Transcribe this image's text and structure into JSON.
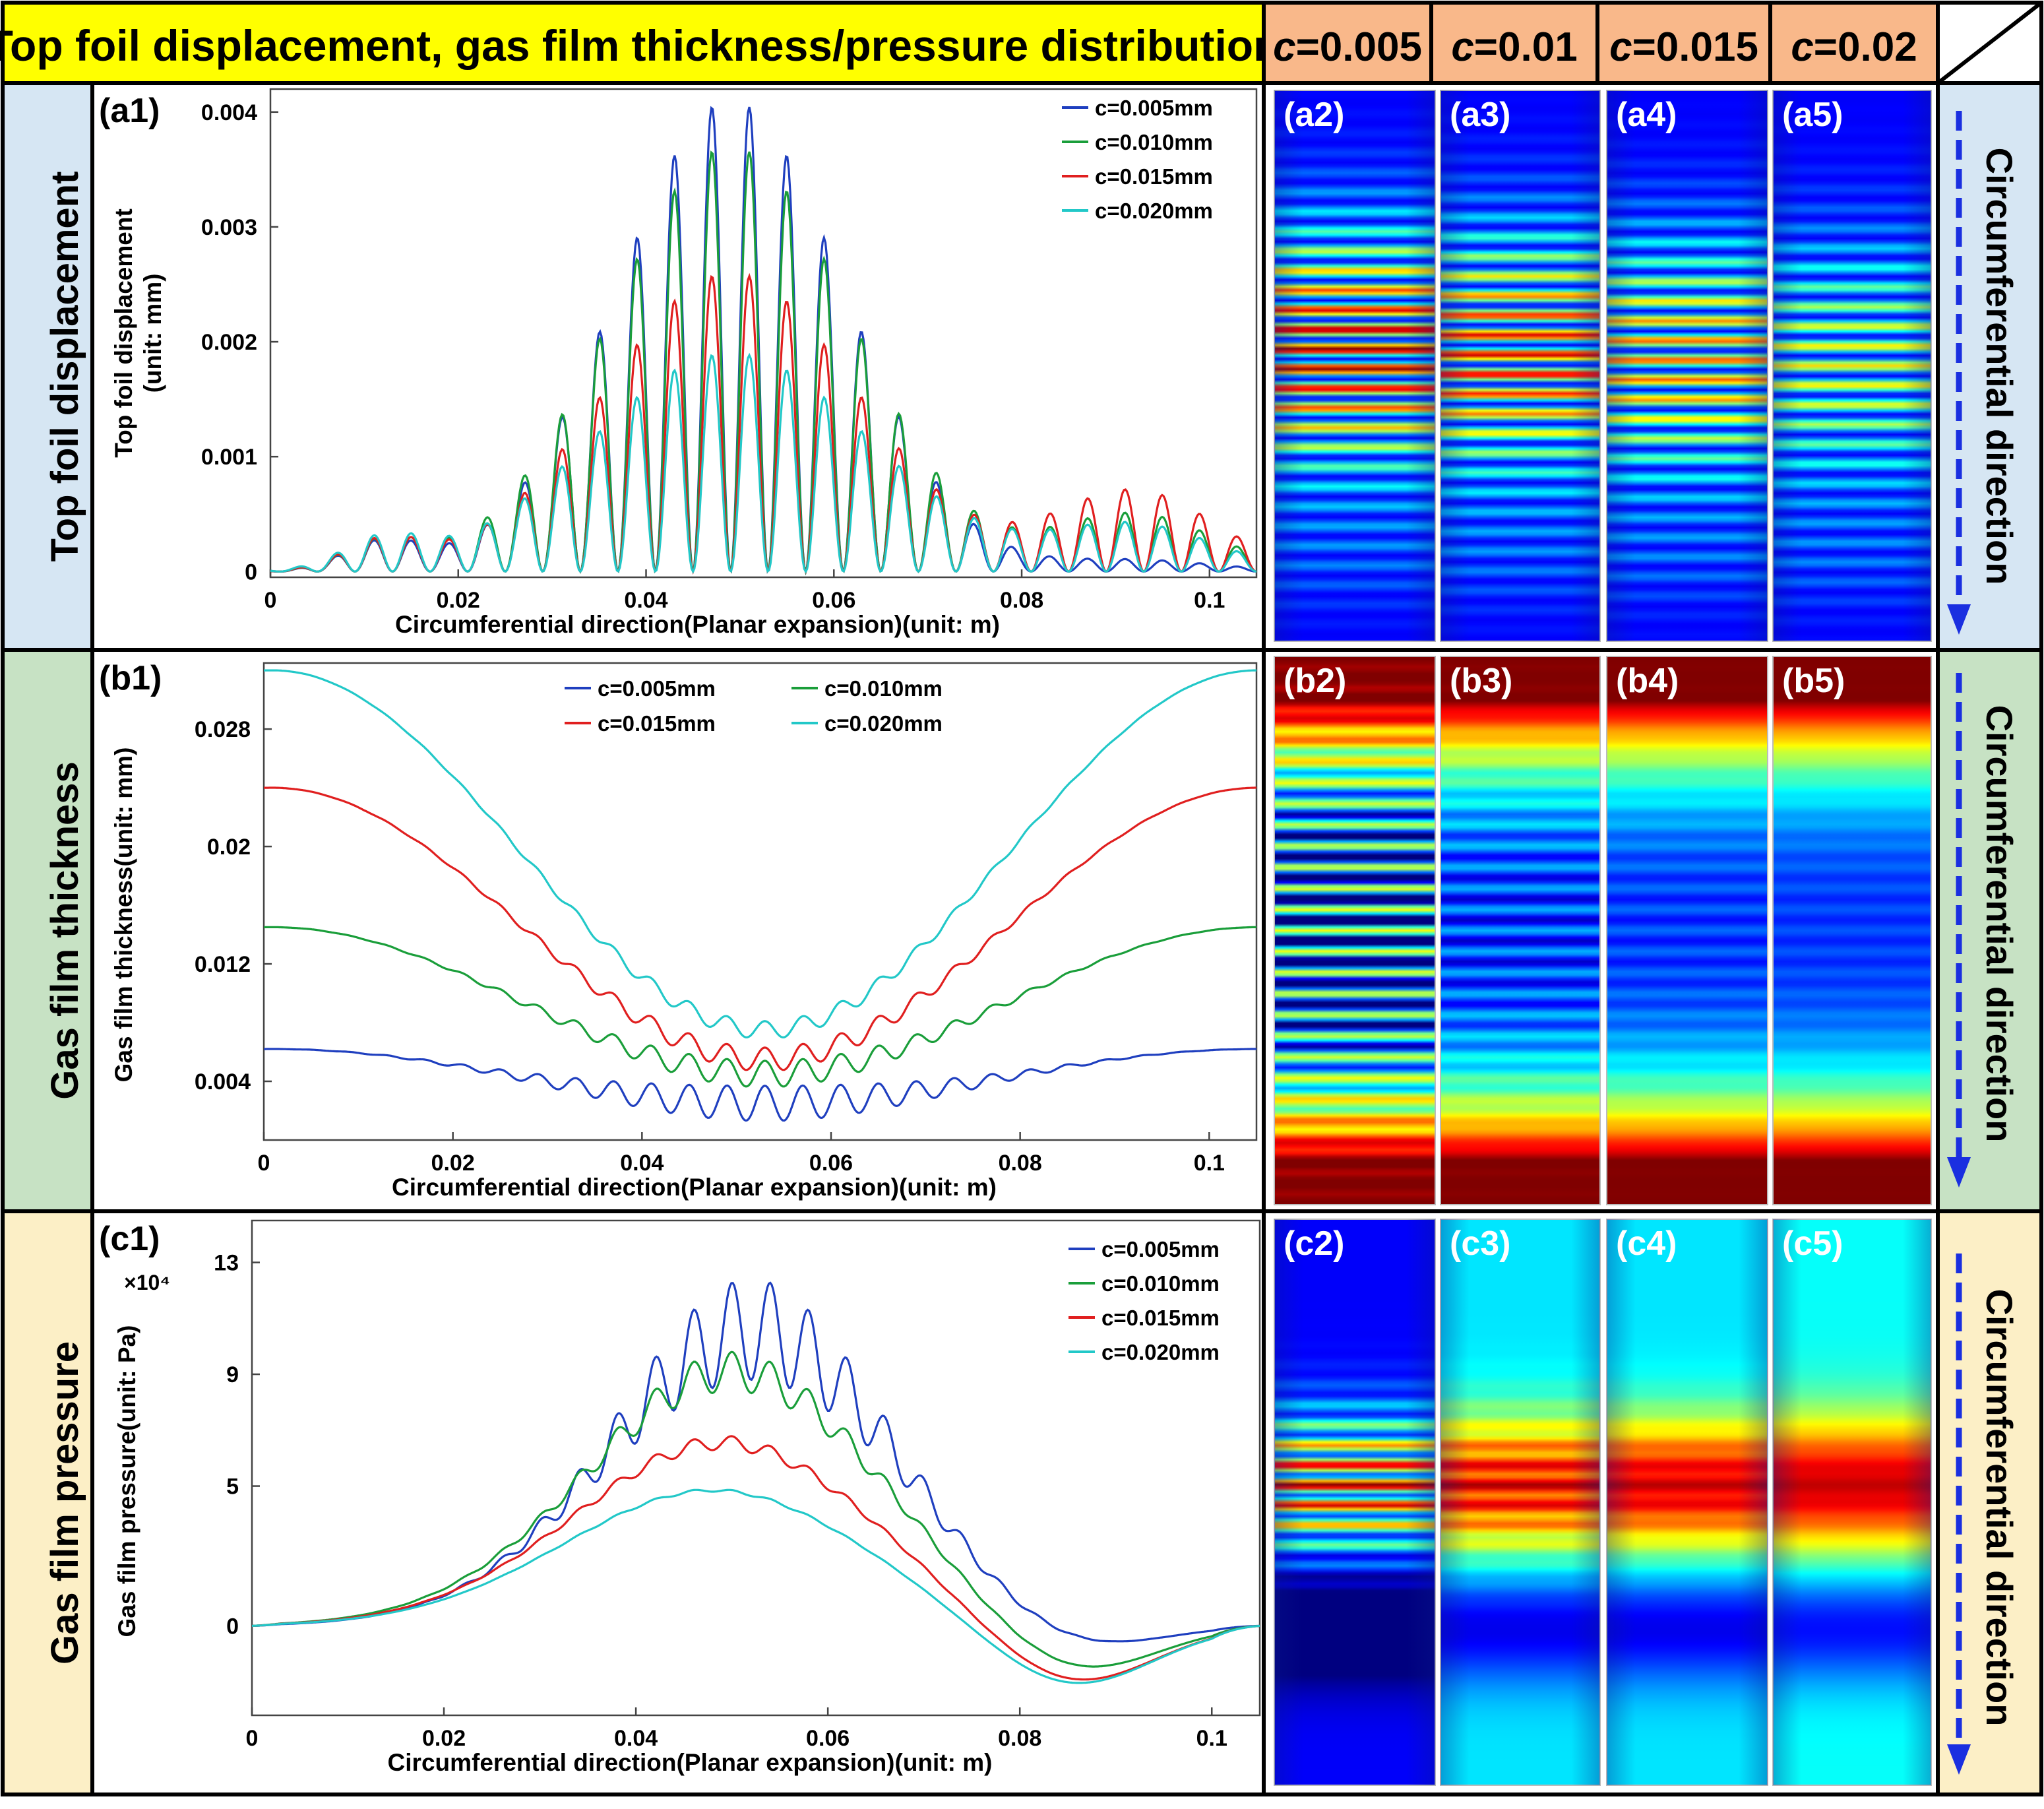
{
  "header": {
    "title": "Top foil displacement, gas film thickness/pressure distribution",
    "c_labels": [
      "c=0.005",
      "c=0.01",
      "c=0.015",
      "c=0.02"
    ]
  },
  "rows": [
    {
      "label": "Top foil displacement",
      "panel_labels": [
        "(a2)",
        "(a3)",
        "(a4)",
        "(a5)"
      ]
    },
    {
      "label": "Gas film thickness",
      "panel_labels": [
        "(b2)",
        "(b3)",
        "(b4)",
        "(b5)"
      ]
    },
    {
      "label": "Gas film pressure",
      "panel_labels": [
        "(c2)",
        "(c3)",
        "(c4)",
        "(c5)"
      ]
    }
  ],
  "direction_label": "Circumferential direction",
  "colors": {
    "header_yellow": "#ffff00",
    "header_orange": "#f9b88a",
    "row_a_bg": "#d6e6f3",
    "row_b_bg": "#c7e2c4",
    "row_c_bg": "#fcefc6",
    "series": [
      "#1f3fbf",
      "#1a9e3a",
      "#e01f1f",
      "#22c8c8"
    ],
    "arrow": "#1a2fe0"
  },
  "chart_data": [
    {
      "id": "a1",
      "type": "line",
      "panel_label": "(a1)",
      "title": "",
      "xlabel": "Circumferential direction(Planar expansion)(unit: m)",
      "ylabel_line1": "Top foil displacement",
      "ylabel_line2": "(unit: mm)",
      "xlim": [
        0,
        0.105
      ],
      "ylim": [
        -5e-05,
        0.0042
      ],
      "xticks": [
        0,
        0.02,
        0.04,
        0.06,
        0.08,
        0.1
      ],
      "xtick_labels": [
        "0",
        "0.02",
        "0.04",
        "0.06",
        "0.08",
        "0.1"
      ],
      "yticks": [
        0,
        0.001,
        0.002,
        0.003,
        0.004
      ],
      "ytick_labels": [
        "0",
        "0.001",
        "0.002",
        "0.003",
        "0.004"
      ],
      "legend_position": "top-right",
      "legend": [
        "c=0.005mm",
        "c=0.010mm",
        "c=0.015mm",
        "c=0.020mm"
      ],
      "model": {
        "kind": "oscillating_bump",
        "period": 0.004,
        "center": 0.049
      },
      "series": [
        {
          "name": "c=0.005mm",
          "peak": 0.0041,
          "width": 0.017,
          "tail": 0.0001,
          "floor": 0.0
        },
        {
          "name": "c=0.010mm",
          "peak": 0.0037,
          "width": 0.018,
          "tail": 0.0005,
          "floor": 0.0
        },
        {
          "name": "c=0.015mm",
          "peak": 0.0026,
          "width": 0.019,
          "tail": 0.0007,
          "floor": 0.0
        },
        {
          "name": "c=0.020mm",
          "peak": 0.0019,
          "width": 0.021,
          "tail": 0.0004,
          "floor": 0.0
        }
      ]
    },
    {
      "id": "b1",
      "type": "line",
      "panel_label": "(b1)",
      "title": "",
      "xlabel": "Circumferential direction(Planar expansion)(unit: m)",
      "ylabel_line1": "Gas film thickness(unit: mm)",
      "ylabel_line2": "",
      "xlim": [
        0,
        0.105
      ],
      "ylim": [
        0.0,
        0.0325
      ],
      "xticks": [
        0,
        0.02,
        0.04,
        0.06,
        0.08,
        0.1
      ],
      "xtick_labels": [
        "0",
        "0.02",
        "0.04",
        "0.06",
        "0.08",
        "0.1"
      ],
      "yticks": [
        0.004,
        0.012,
        0.02,
        0.028
      ],
      "ytick_labels": [
        "0.004",
        "0.012",
        "0.02",
        "0.028"
      ],
      "legend_position": "top-center",
      "legend": [
        "c=0.005mm",
        "c=0.010mm",
        "c=0.015mm",
        "c=0.020mm"
      ],
      "model": {
        "kind": "valley",
        "center": 0.053
      },
      "series": [
        {
          "name": "c=0.005mm",
          "edge": 0.0062,
          "min": 0.0025,
          "ripple": 0.0012
        },
        {
          "name": "c=0.010mm",
          "edge": 0.0145,
          "min": 0.0045,
          "ripple": 0.0009
        },
        {
          "name": "c=0.015mm",
          "edge": 0.024,
          "min": 0.0055,
          "ripple": 0.0008
        },
        {
          "name": "c=0.020mm",
          "edge": 0.032,
          "min": 0.0075,
          "ripple": 0.0006
        }
      ]
    },
    {
      "id": "c1",
      "type": "line",
      "panel_label": "(c1)",
      "title": "",
      "xlabel": "Circumferential direction(Planar expansion)(unit: m)",
      "ylabel_line1": "Gas film pressure(unit: Pa)",
      "ylabel_line2": "",
      "y_multiplier": "×10⁴",
      "xlim": [
        0,
        0.105
      ],
      "ylim": [
        -3.2,
        14.5
      ],
      "xticks": [
        0,
        0.02,
        0.04,
        0.06,
        0.08,
        0.1
      ],
      "xtick_labels": [
        "0",
        "0.02",
        "0.04",
        "0.06",
        "0.08",
        "0.1"
      ],
      "yticks": [
        0,
        5,
        9,
        13
      ],
      "ytick_labels": [
        "0",
        "5",
        "9",
        "13"
      ],
      "legend_position": "top-right",
      "legend": [
        "c=0.005mm",
        "c=0.010mm",
        "c=0.015mm",
        "c=0.020mm"
      ],
      "model": {
        "kind": "pressure",
        "period": 0.004
      },
      "series": [
        {
          "name": "c=0.005mm",
          "peak": 14.0,
          "center": 0.052,
          "base_peak": 8.8,
          "ripple": 3.6,
          "neg": -1.2
        },
        {
          "name": "c=0.010mm",
          "peak": 10.0,
          "center": 0.05,
          "base_peak": 8.4,
          "ripple": 1.4,
          "neg": -2.0
        },
        {
          "name": "c=0.015mm",
          "peak": 6.9,
          "center": 0.049,
          "base_peak": 6.3,
          "ripple": 0.5,
          "neg": -2.3
        },
        {
          "name": "c=0.020mm",
          "peak": 4.8,
          "center": 0.048,
          "base_peak": 4.8,
          "ripple": 0.1,
          "neg": -2.3
        }
      ]
    }
  ]
}
